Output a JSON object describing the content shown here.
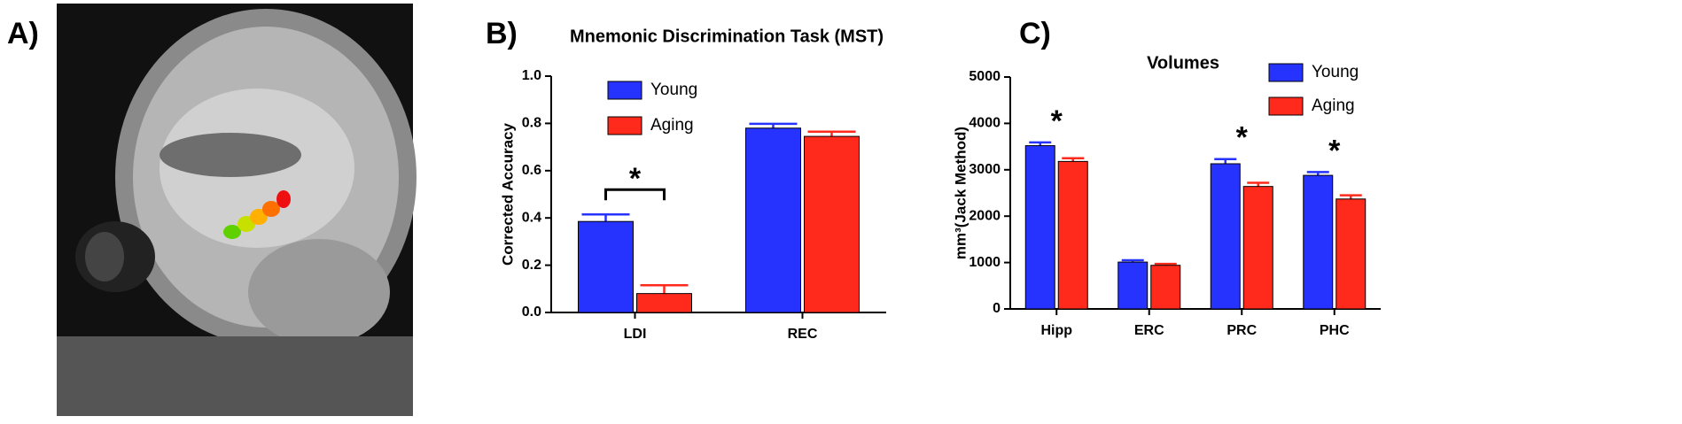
{
  "image_panel": {
    "label": "A)"
  },
  "chart_data": [
    {
      "type": "bar",
      "label": "B)",
      "title": "Mnemonic Discrimination Task (MST)",
      "ylabel": "Corrected Accuracy",
      "categories": [
        "LDI",
        "REC"
      ],
      "series": [
        {
          "name": "Young",
          "color": "#2633ff",
          "values": [
            0.385,
            0.78
          ],
          "errors": [
            0.03,
            0.018
          ]
        },
        {
          "name": "Aging",
          "color": "#ff2a1c",
          "values": [
            0.08,
            0.745
          ],
          "errors": [
            0.035,
            0.02
          ]
        }
      ],
      "ylim": [
        0,
        1
      ],
      "yticks": [
        {
          "value": 0,
          "label": "0.0"
        },
        0.2,
        0.4,
        0.6,
        0.8,
        {
          "value": 1,
          "label": "1.0"
        }
      ],
      "annotations": [
        "*"
      ],
      "legend": "upper left"
    },
    {
      "type": "bar",
      "label": "C)",
      "title": "Volumes",
      "ylabel": "mm³(Jack Method)",
      "categories": [
        "Hipp",
        "ERC",
        "PRC",
        "PHC"
      ],
      "series": [
        {
          "name": "Young",
          "color": "#2633ff",
          "values": [
            3520,
            1010,
            3130,
            2880
          ],
          "errors": [
            70,
            40,
            100,
            70
          ]
        },
        {
          "name": "Aging",
          "color": "#ff2a1c",
          "values": [
            3180,
            940,
            2640,
            2370
          ],
          "errors": [
            70,
            30,
            80,
            80
          ]
        }
      ],
      "ylim": [
        0,
        5000
      ],
      "yticks": [
        0,
        1000,
        2000,
        3000,
        4000,
        5000
      ],
      "annotations": [
        "*",
        "*",
        "*"
      ],
      "legend": "upper right"
    }
  ]
}
